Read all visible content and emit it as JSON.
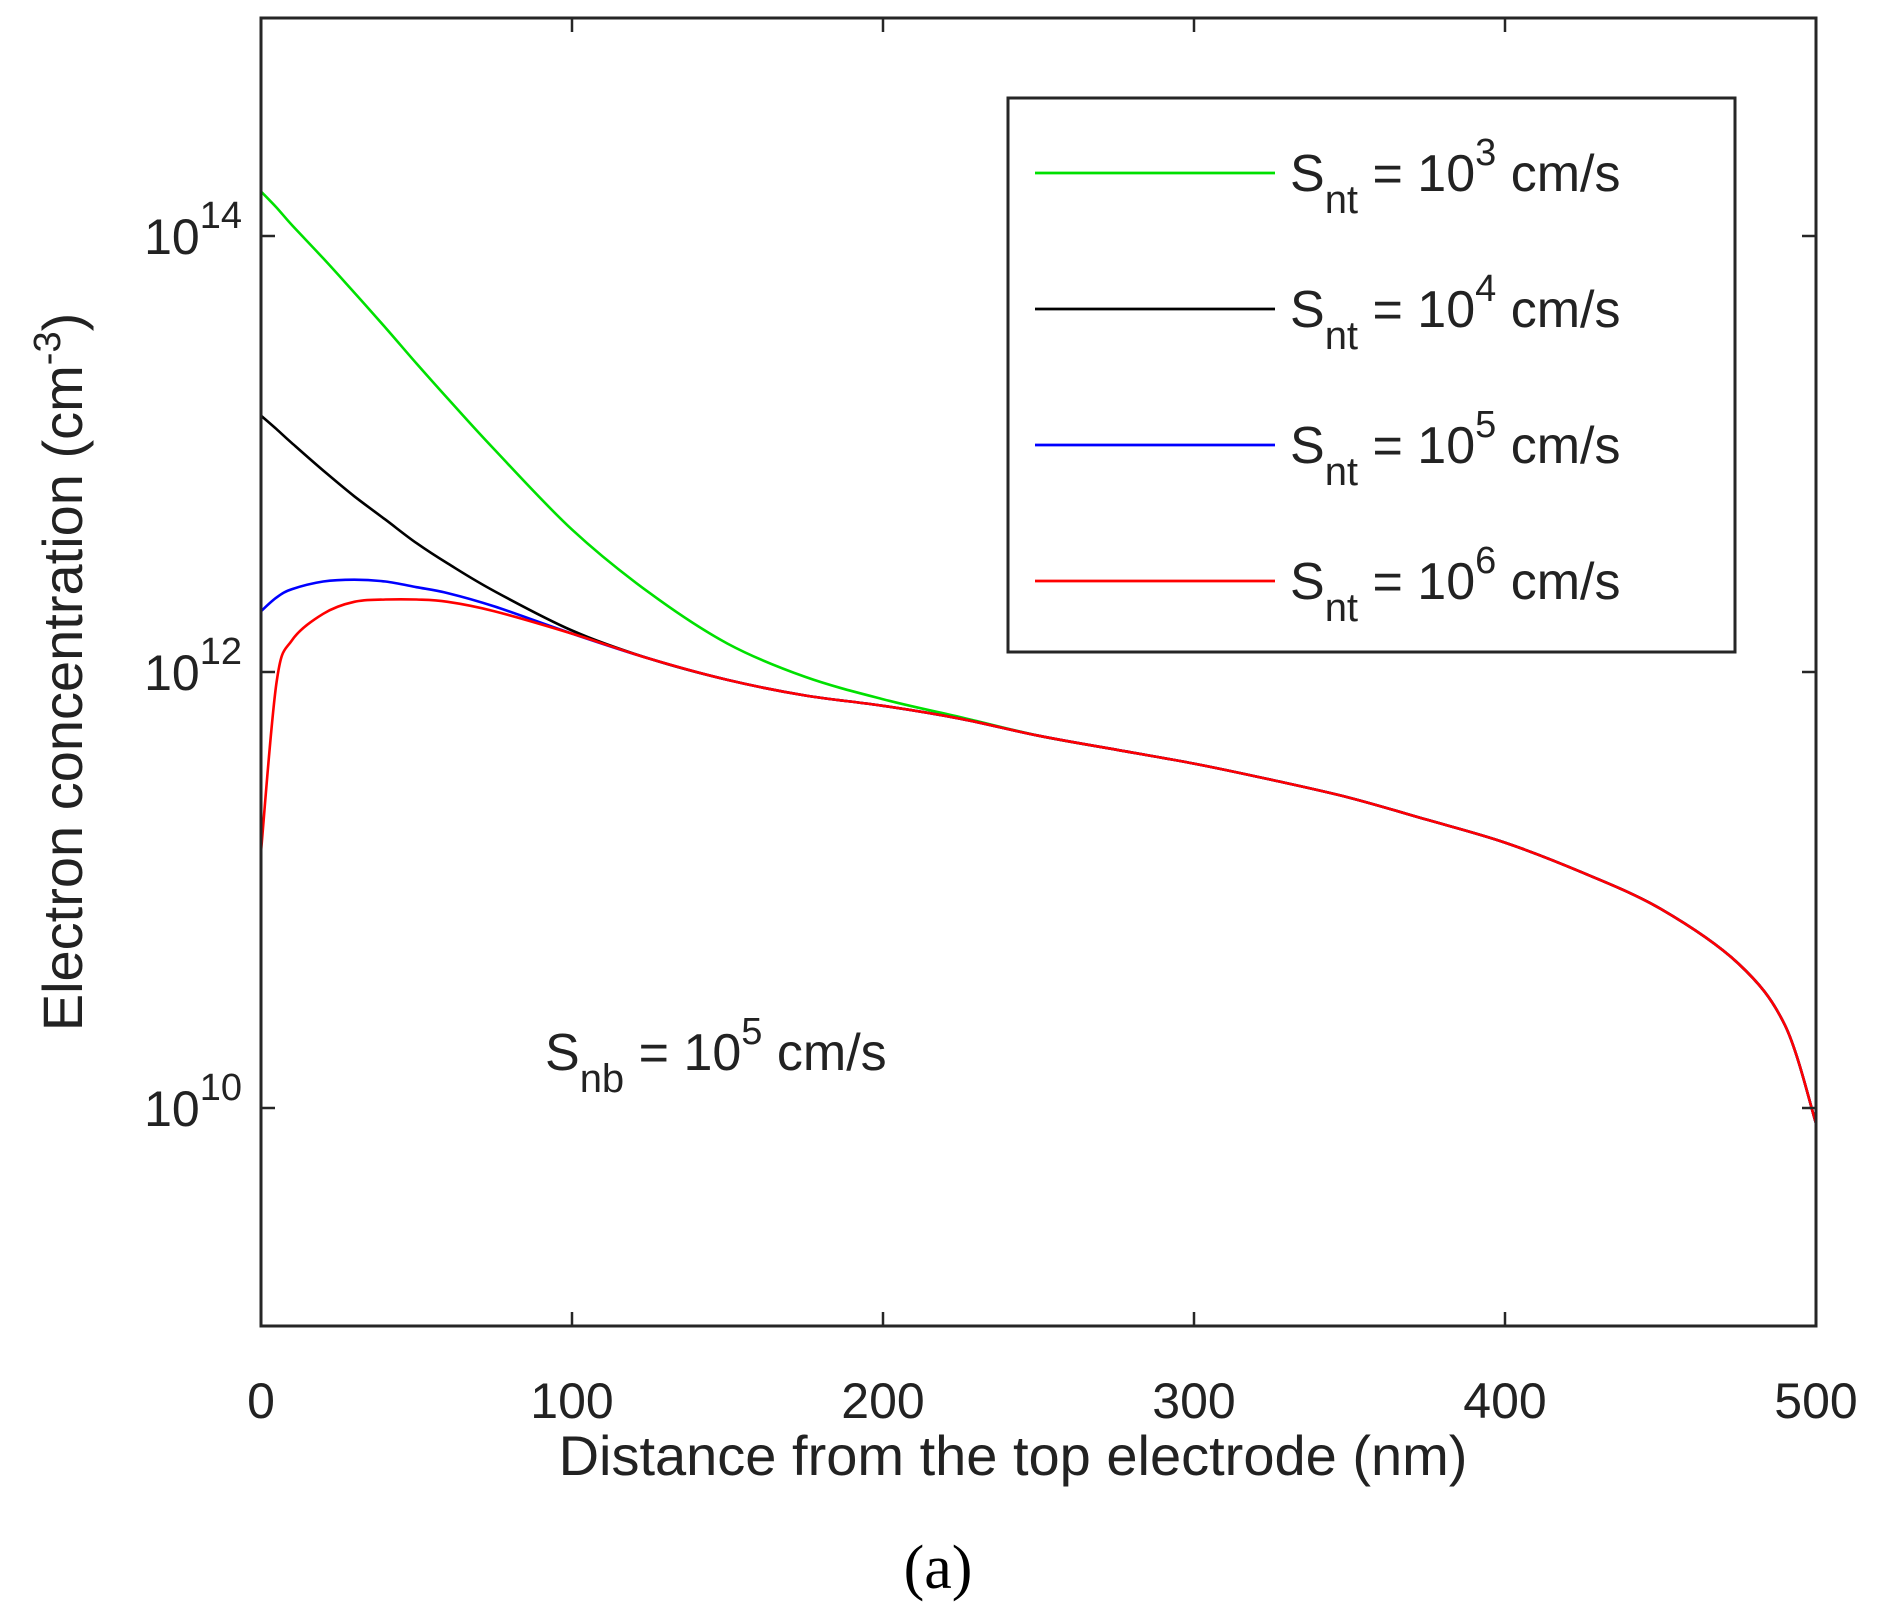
{
  "chart_data": {
    "type": "line",
    "title": "",
    "xlabel": "Distance from the top electrode (nm)",
    "ylabel": "Electron concentration (cm",
    "ylabel_unit_exponent": "-3",
    "ylabel_close": ")",
    "yscale": "log",
    "xlim": [
      0,
      500
    ],
    "ylim": [
      1000000000.0,
      1000000000000000.0
    ],
    "grid": false,
    "legend_position": "top-right",
    "x_ticks": [
      0,
      100,
      200,
      300,
      400,
      500
    ],
    "x_tick_labels": [
      "0",
      "100",
      "200",
      "300",
      "400",
      "500"
    ],
    "y_ticks": [
      10000000000.0,
      1000000000000.0,
      100000000000000.0
    ],
    "y_tick_labels": [
      {
        "base": "10",
        "exp": "10"
      },
      {
        "base": "10",
        "exp": "12"
      },
      {
        "base": "10",
        "exp": "14"
      }
    ],
    "annotation": {
      "prefix": "S",
      "sub": "nb",
      "mid": " = 10",
      "sup": "5",
      "suffix": " cm/s",
      "x": 55,
      "y": 15000000000.0
    },
    "caption": "(a)",
    "x": [
      0,
      5,
      10,
      20,
      30,
      40,
      50,
      60,
      75,
      100,
      125,
      150,
      175,
      200,
      225,
      250,
      275,
      300,
      325,
      350,
      375,
      400,
      425,
      450,
      475,
      490,
      500
    ],
    "series": [
      {
        "name": "S_nt = 10^3 cm/s",
        "label": {
          "prefix": "S",
          "sub": "nt",
          "mid": " = 10",
          "sup": "3",
          "suffix": " cm/s"
        },
        "color": "#00e000",
        "values": [
          160000000000000.0,
          135000000000000.0,
          112000000000000.0,
          79000000000000.0,
          55000000000000.0,
          38000000000000.0,
          26000000000000.0,
          18000000000000.0,
          10500000000000.0,
          4500000000000.0,
          2300000000000.0,
          1350000000000.0,
          950000000000.0,
          750000000000.0,
          620000000000.0,
          510000000000.0,
          440000000000.0,
          380000000000.0,
          320000000000.0,
          265000000000.0,
          210000000000.0,
          165000000000.0,
          120000000000.0,
          82000000000.0,
          46000000000.0,
          24000000000.0,
          8500000000.0
        ]
      },
      {
        "name": "S_nt = 10^4 cm/s",
        "label": {
          "prefix": "S",
          "sub": "nt",
          "mid": " = 10",
          "sup": "4",
          "suffix": " cm/s"
        },
        "color": "#000000",
        "values": [
          15000000000000.0,
          13000000000000.0,
          11200000000000.0,
          8400000000000.0,
          6400000000000.0,
          5000000000000.0,
          3900000000000.0,
          3150000000000.0,
          2350000000000.0,
          1550000000000.0,
          1150000000000.0,
          920000000000.0,
          780000000000.0,
          700000000000.0,
          610000000000.0,
          510000000000.0,
          440000000000.0,
          380000000000.0,
          320000000000.0,
          265000000000.0,
          210000000000.0,
          165000000000.0,
          120000000000.0,
          82000000000.0,
          46000000000.0,
          24000000000.0,
          8500000000.0
        ]
      },
      {
        "name": "S_nt = 10^5 cm/s",
        "label": {
          "prefix": "S",
          "sub": "nt",
          "mid": " = 10",
          "sup": "5",
          "suffix": " cm/s"
        },
        "color": "#0000ff",
        "values": [
          1900000000000.0,
          2200000000000.0,
          2400000000000.0,
          2600000000000.0,
          2650000000000.0,
          2600000000000.0,
          2450000000000.0,
          2300000000000.0,
          2000000000000.0,
          1500000000000.0,
          1150000000000.0,
          920000000000.0,
          780000000000.0,
          700000000000.0,
          610000000000.0,
          510000000000.0,
          440000000000.0,
          380000000000.0,
          320000000000.0,
          265000000000.0,
          210000000000.0,
          165000000000.0,
          120000000000.0,
          82000000000.0,
          46000000000.0,
          24000000000.0,
          8500000000.0
        ]
      },
      {
        "name": "S_nt = 10^6 cm/s",
        "label": {
          "prefix": "S",
          "sub": "nt",
          "mid": " = 10",
          "sup": "6",
          "suffix": " cm/s"
        },
        "color": "#ff0000",
        "values": [
          150000000000.0,
          900000000000.0,
          1400000000000.0,
          1850000000000.0,
          2100000000000.0,
          2150000000000.0,
          2150000000000.0,
          2100000000000.0,
          1900000000000.0,
          1500000000000.0,
          1150000000000.0,
          920000000000.0,
          780000000000.0,
          700000000000.0,
          610000000000.0,
          510000000000.0,
          440000000000.0,
          380000000000.0,
          320000000000.0,
          265000000000.0,
          210000000000.0,
          165000000000.0,
          120000000000.0,
          82000000000.0,
          46000000000.0,
          24000000000.0,
          8500000000.0
        ]
      }
    ]
  }
}
